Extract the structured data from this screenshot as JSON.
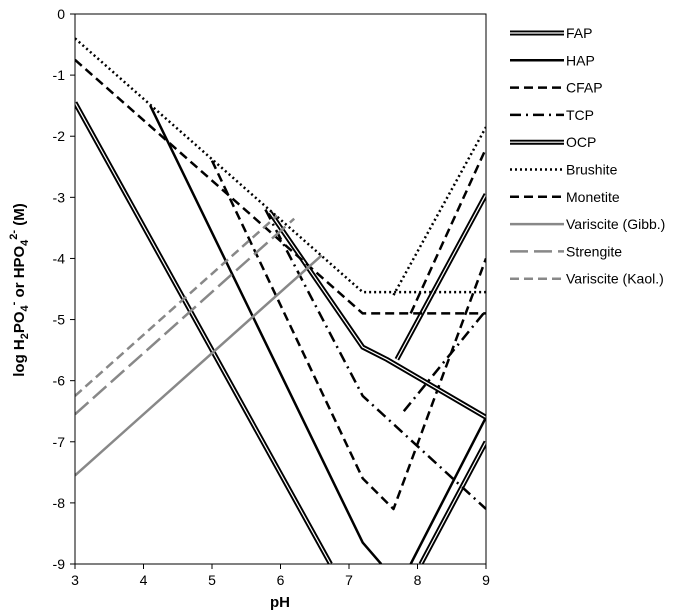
{
  "chart_data": {
    "type": "line",
    "title": "",
    "xlabel": "pH",
    "ylabel": "log H2PO4- or HPO42- (M)",
    "xlim": [
      3,
      9
    ],
    "ylim": [
      -9,
      0
    ],
    "x_ticks": [
      "3",
      "4",
      "5",
      "6",
      "7",
      "8",
      "9"
    ],
    "y_ticks": [
      "0",
      "-1",
      "-2",
      "-3",
      "-4",
      "-5",
      "-6",
      "-7",
      "-8",
      "-9"
    ],
    "grid": false,
    "legend_position": "right",
    "series": [
      {
        "name": "FAP",
        "style": "double-thick",
        "color": "#000000",
        "points": [
          [
            3,
            -1.45
          ],
          [
            6.73,
            -9.0
          ]
        ]
      },
      {
        "name": "FAP",
        "style": "double-thick",
        "color": "#000000",
        "points": [
          [
            8.05,
            -9.0
          ],
          [
            9,
            -7.0
          ]
        ]
      },
      {
        "name": "HAP",
        "style": "solid",
        "color": "#000000",
        "points": [
          [
            4.1,
            -1.5
          ],
          [
            7.2,
            -8.65
          ],
          [
            7.47,
            -9.0
          ]
        ]
      },
      {
        "name": "HAP",
        "style": "solid",
        "color": "#000000",
        "points": [
          [
            7.9,
            -9.0
          ],
          [
            9,
            -6.6
          ]
        ]
      },
      {
        "name": "CFAP",
        "style": "dash",
        "color": "#000000",
        "points": [
          [
            5.0,
            -2.4
          ],
          [
            7.2,
            -7.6
          ],
          [
            7.65,
            -8.1
          ],
          [
            9,
            -4.0
          ]
        ]
      },
      {
        "name": "TCP",
        "style": "dash-dot",
        "color": "#000000",
        "points": [
          [
            5.78,
            -3.2
          ],
          [
            7.2,
            -6.25
          ],
          [
            9,
            -8.1
          ]
        ]
      },
      {
        "name": "TCP",
        "style": "dash-dot",
        "color": "#000000",
        "points": [
          [
            7.8,
            -6.5
          ],
          [
            9,
            -4.85
          ]
        ]
      },
      {
        "name": "OCP",
        "style": "double-thick",
        "color": "#000000",
        "points": [
          [
            5.85,
            -3.25
          ],
          [
            7.2,
            -5.45
          ],
          [
            7.55,
            -5.65
          ],
          [
            9,
            -6.6
          ]
        ]
      },
      {
        "name": "OCP",
        "style": "double-thick",
        "color": "#000000",
        "points": [
          [
            7.7,
            -5.65
          ],
          [
            9,
            -2.95
          ]
        ]
      },
      {
        "name": "Brushite",
        "style": "dot",
        "color": "#000000",
        "points": [
          [
            3,
            -0.4
          ],
          [
            7.2,
            -4.55
          ],
          [
            9,
            -4.55
          ]
        ]
      },
      {
        "name": "Brushite",
        "style": "dot",
        "color": "#000000",
        "points": [
          [
            7.65,
            -4.6
          ],
          [
            9,
            -1.85
          ]
        ]
      },
      {
        "name": "Monetite",
        "style": "dash",
        "color": "#000000",
        "points": [
          [
            3,
            -0.75
          ],
          [
            7.2,
            -4.9
          ],
          [
            9,
            -4.9
          ]
        ]
      },
      {
        "name": "Monetite",
        "style": "dash",
        "color": "#000000",
        "points": [
          [
            7.9,
            -4.9
          ],
          [
            9,
            -2.2
          ]
        ]
      },
      {
        "name": "Variscite (Gibb.)",
        "style": "solid",
        "color": "#888888",
        "points": [
          [
            3,
            -7.55
          ],
          [
            6.6,
            -3.95
          ]
        ]
      },
      {
        "name": "Strengite",
        "style": "long-dash",
        "color": "#888888",
        "points": [
          [
            3,
            -6.55
          ],
          [
            6.2,
            -3.35
          ]
        ]
      },
      {
        "name": "Variscite (Kaol.)",
        "style": "dash",
        "color": "#888888",
        "points": [
          [
            3,
            -6.25
          ],
          [
            5.95,
            -3.3
          ]
        ]
      }
    ],
    "legend": [
      {
        "label": "FAP",
        "style": "double-thick",
        "color": "#000000"
      },
      {
        "label": "HAP",
        "style": "solid",
        "color": "#000000"
      },
      {
        "label": "CFAP",
        "style": "dash",
        "color": "#000000"
      },
      {
        "label": "TCP",
        "style": "dash-dot",
        "color": "#000000"
      },
      {
        "label": "OCP",
        "style": "double-thick",
        "color": "#000000"
      },
      {
        "label": "Brushite",
        "style": "dot",
        "color": "#000000"
      },
      {
        "label": "Monetite",
        "style": "dash",
        "color": "#000000"
      },
      {
        "label": "Variscite (Gibb.)",
        "style": "solid",
        "color": "#888888"
      },
      {
        "label": "Strengite",
        "style": "long-dash",
        "color": "#888888"
      },
      {
        "label": "Variscite (Kaol.)",
        "style": "dash",
        "color": "#888888"
      }
    ]
  }
}
